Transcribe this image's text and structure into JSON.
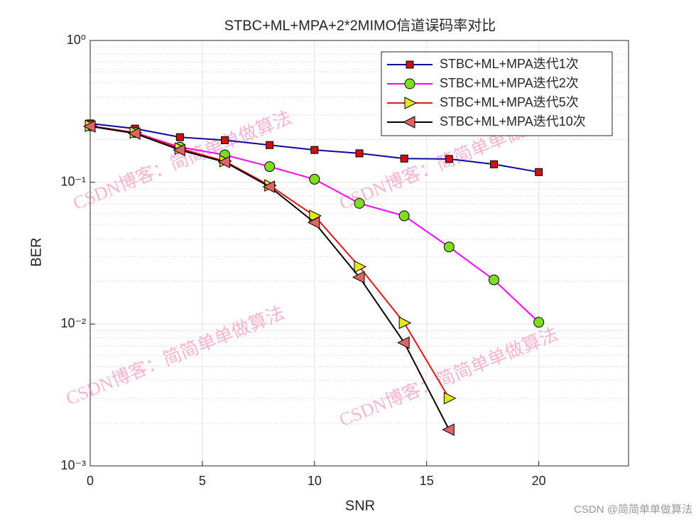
{
  "chart_data": {
    "type": "line",
    "title": "STBC+ML+MPA+2*2MIMO信道误码率对比",
    "x_label": "SNR",
    "y_label": "BER",
    "xlim": [
      0,
      24
    ],
    "ylim": [
      0.001,
      1
    ],
    "log_y": true,
    "xticks": [
      0,
      5,
      10,
      15,
      20
    ],
    "yticks": [
      {
        "value": 0.001,
        "label": "10⁻³"
      },
      {
        "value": 0.01,
        "label": "10⁻²"
      },
      {
        "value": 0.1,
        "label": "10⁻¹"
      },
      {
        "value": 1,
        "label": "10⁰"
      }
    ],
    "grid": true,
    "minor_grid": true,
    "legend_position": "upper-right",
    "series": [
      {
        "name": "STBC+ML+MPA迭代1次",
        "color": "#0a0aa0",
        "marker": "square",
        "marker_color": "#d01010",
        "x": [
          0,
          2,
          4,
          6,
          8,
          10,
          12,
          14,
          16,
          18,
          20
        ],
        "values": [
          0.26,
          0.239,
          0.208,
          0.198,
          0.183,
          0.169,
          0.16,
          0.147,
          0.146,
          0.134,
          0.118
        ]
      },
      {
        "name": "STBC+ML+MPA迭代2次",
        "color": "#ff00ff",
        "marker": "circle",
        "marker_color": "#7fdc1e",
        "x": [
          0,
          2,
          4,
          6,
          8,
          10,
          12,
          14,
          16,
          18,
          20
        ],
        "values": [
          0.25,
          0.224,
          0.177,
          0.156,
          0.129,
          0.105,
          0.071,
          0.058,
          0.035,
          0.0205,
          0.0103
        ]
      },
      {
        "name": "STBC+ML+MPA迭代5次",
        "color": "#e01818",
        "marker": "triangle-right",
        "marker_color": "#e6e61e",
        "x": [
          0,
          2,
          4,
          6,
          8,
          10,
          12,
          14,
          16
        ],
        "values": [
          0.25,
          0.224,
          0.173,
          0.141,
          0.095,
          0.058,
          0.0254,
          0.0102,
          0.003
        ]
      },
      {
        "name": "STBC+ML+MPA迭代10次",
        "color": "#000000",
        "marker": "triangle-left",
        "marker_color": "#e06464",
        "x": [
          0,
          2,
          4,
          6,
          8,
          10,
          12,
          14,
          16
        ],
        "values": [
          0.248,
          0.221,
          0.169,
          0.139,
          0.093,
          0.052,
          0.0214,
          0.0074,
          0.0018
        ]
      }
    ],
    "watermarks": [
      "CSDN博客：简简单单做算法",
      "CSDN博客：简简单单做算法",
      "CSDN博客：简简单单做算法",
      "CSDN博客：简简单单做算法"
    ],
    "footer": "CSDN @简简单单做算法"
  }
}
